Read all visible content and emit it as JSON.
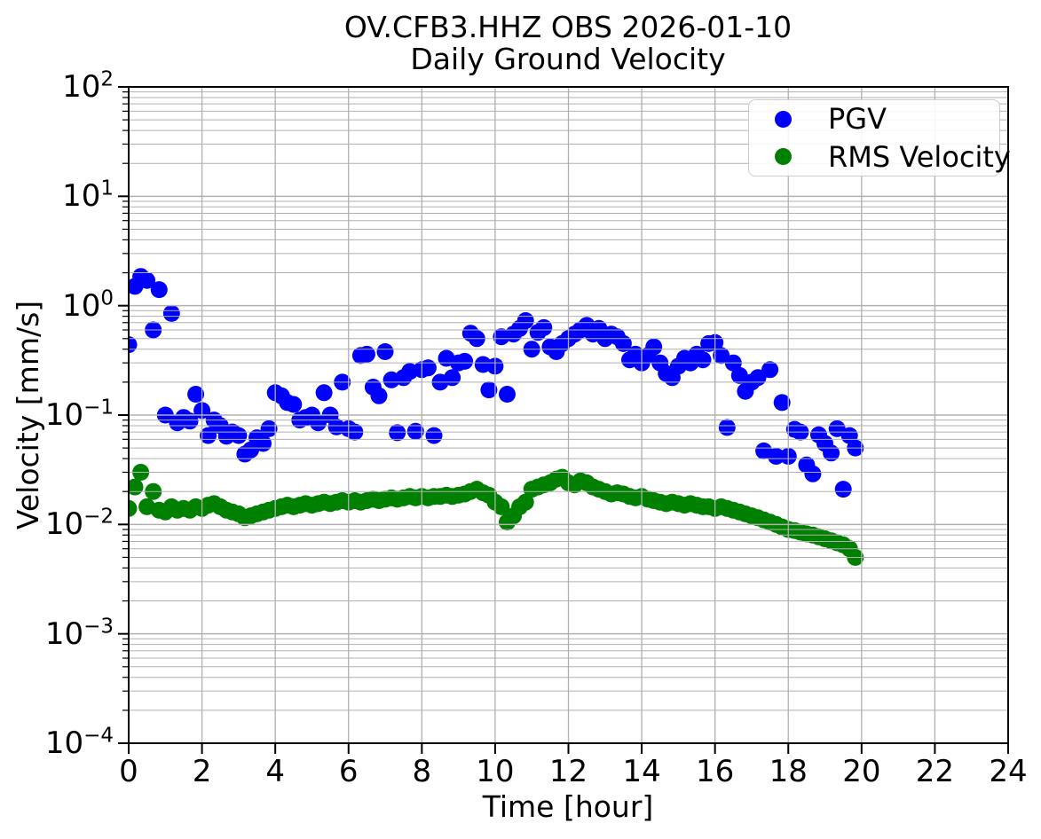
{
  "title": {
    "line1": "OV.CFB3.HHZ OBS 2026-01-10",
    "line2": "Daily Ground Velocity"
  },
  "axes": {
    "x_label": "Time [hour]",
    "y_label": "Velocity [mm/s]",
    "x_ticks": [
      0,
      2,
      4,
      6,
      8,
      10,
      12,
      14,
      16,
      18,
      20,
      22,
      24
    ],
    "y_tick_exponents": [
      2,
      1,
      0,
      -1,
      -2,
      -3,
      -4
    ]
  },
  "legend": {
    "items": [
      {
        "label": "PGV",
        "color": "#0000ff",
        "marker": "circle-icon"
      },
      {
        "label": "RMS Velocity",
        "color": "#008000",
        "marker": "circle-icon"
      }
    ]
  },
  "colors": {
    "pgv_blue": "#0000ff",
    "rms_green": "#008000",
    "grid_gray": "#b0b0b0",
    "spine_black": "#000000"
  },
  "chart_data": {
    "type": "scatter",
    "title": "OV.CFB3.HHZ OBS 2026-01-10\nDaily Ground Velocity",
    "xlabel": "Time [hour]",
    "ylabel": "Velocity [mm/s]",
    "xlim": [
      0,
      24
    ],
    "ylim": [
      0.0001,
      100
    ],
    "y_scale": "log",
    "grid": "major+minor, gray, drawn above points",
    "legend_position": "upper right",
    "marker_size_px": 19,
    "x_hours": [
      0,
      0.17,
      0.33,
      0.5,
      0.67,
      0.83,
      1,
      1.17,
      1.33,
      1.5,
      1.67,
      1.83,
      2,
      2.17,
      2.33,
      2.5,
      2.67,
      2.83,
      3,
      3.17,
      3.33,
      3.5,
      3.67,
      3.83,
      4,
      4.17,
      4.33,
      4.5,
      4.67,
      4.83,
      5,
      5.17,
      5.33,
      5.5,
      5.67,
      5.83,
      6,
      6.17,
      6.33,
      6.5,
      6.67,
      6.83,
      7,
      7.17,
      7.33,
      7.5,
      7.67,
      7.83,
      8,
      8.17,
      8.33,
      8.5,
      8.67,
      8.83,
      9,
      9.17,
      9.33,
      9.5,
      9.67,
      9.83,
      10,
      10.17,
      10.33,
      10.5,
      10.67,
      10.83,
      11,
      11.17,
      11.33,
      11.5,
      11.67,
      11.83,
      12,
      12.17,
      12.33,
      12.5,
      12.67,
      12.83,
      13,
      13.17,
      13.33,
      13.5,
      13.67,
      13.83,
      14,
      14.17,
      14.33,
      14.5,
      14.67,
      14.83,
      15,
      15.17,
      15.33,
      15.5,
      15.67,
      15.83,
      16,
      16.17,
      16.33,
      16.5,
      16.67,
      16.83,
      17,
      17.17,
      17.33,
      17.5,
      17.67,
      17.83,
      18,
      18.17,
      18.33,
      18.5,
      18.67,
      18.83,
      19,
      19.17,
      19.33,
      19.5,
      19.67,
      19.83
    ],
    "series": [
      {
        "name": "PGV",
        "color": "#0000ff",
        "values": [
          0.44,
          1.5,
          1.85,
          1.7,
          0.6,
          1.4,
          0.1,
          0.85,
          0.085,
          0.095,
          0.088,
          0.155,
          0.11,
          0.065,
          0.09,
          0.08,
          0.064,
          0.07,
          0.065,
          0.044,
          0.048,
          0.062,
          0.055,
          0.075,
          0.16,
          0.15,
          0.13,
          0.125,
          0.09,
          0.095,
          0.1,
          0.085,
          0.16,
          0.1,
          0.078,
          0.2,
          0.075,
          0.07,
          0.35,
          0.36,
          0.18,
          0.15,
          0.38,
          0.21,
          0.069,
          0.22,
          0.25,
          0.071,
          0.26,
          0.27,
          0.065,
          0.2,
          0.33,
          0.22,
          0.3,
          0.31,
          0.56,
          0.5,
          0.29,
          0.17,
          0.28,
          0.52,
          0.155,
          0.55,
          0.62,
          0.73,
          0.4,
          0.57,
          0.63,
          0.42,
          0.38,
          0.45,
          0.5,
          0.55,
          0.6,
          0.66,
          0.55,
          0.62,
          0.5,
          0.55,
          0.52,
          0.45,
          0.32,
          0.36,
          0.3,
          0.35,
          0.42,
          0.3,
          0.24,
          0.22,
          0.28,
          0.33,
          0.3,
          0.36,
          0.32,
          0.45,
          0.46,
          0.35,
          0.077,
          0.3,
          0.23,
          0.165,
          0.2,
          0.22,
          0.047,
          0.26,
          0.042,
          0.13,
          0.042,
          0.074,
          0.07,
          0.035,
          0.029,
          0.066,
          0.055,
          0.045,
          0.075,
          0.021,
          0.065,
          0.05
        ]
      },
      {
        "name": "RMS Velocity",
        "color": "#008000",
        "values": [
          0.014,
          0.022,
          0.03,
          0.0145,
          0.02,
          0.0135,
          0.013,
          0.0145,
          0.0135,
          0.014,
          0.0135,
          0.0145,
          0.014,
          0.015,
          0.0155,
          0.0145,
          0.0135,
          0.013,
          0.0125,
          0.0115,
          0.012,
          0.0125,
          0.013,
          0.0135,
          0.014,
          0.0145,
          0.015,
          0.0145,
          0.015,
          0.0155,
          0.015,
          0.0155,
          0.016,
          0.0155,
          0.016,
          0.0165,
          0.016,
          0.0165,
          0.016,
          0.0165,
          0.017,
          0.0165,
          0.017,
          0.0175,
          0.017,
          0.0175,
          0.018,
          0.0175,
          0.018,
          0.0175,
          0.018,
          0.018,
          0.0185,
          0.018,
          0.0185,
          0.019,
          0.02,
          0.021,
          0.0195,
          0.0185,
          0.016,
          0.0145,
          0.0105,
          0.012,
          0.0145,
          0.016,
          0.021,
          0.022,
          0.023,
          0.024,
          0.026,
          0.027,
          0.024,
          0.023,
          0.025,
          0.024,
          0.022,
          0.021,
          0.02,
          0.019,
          0.0195,
          0.019,
          0.018,
          0.0175,
          0.018,
          0.017,
          0.0165,
          0.016,
          0.0155,
          0.016,
          0.0155,
          0.015,
          0.0155,
          0.015,
          0.0145,
          0.0145,
          0.014,
          0.0145,
          0.014,
          0.0135,
          0.013,
          0.0125,
          0.012,
          0.0115,
          0.011,
          0.0105,
          0.01,
          0.0095,
          0.009,
          0.0088,
          0.0085,
          0.0082,
          0.008,
          0.0077,
          0.0074,
          0.0071,
          0.0068,
          0.0065,
          0.006,
          0.005
        ]
      }
    ]
  }
}
